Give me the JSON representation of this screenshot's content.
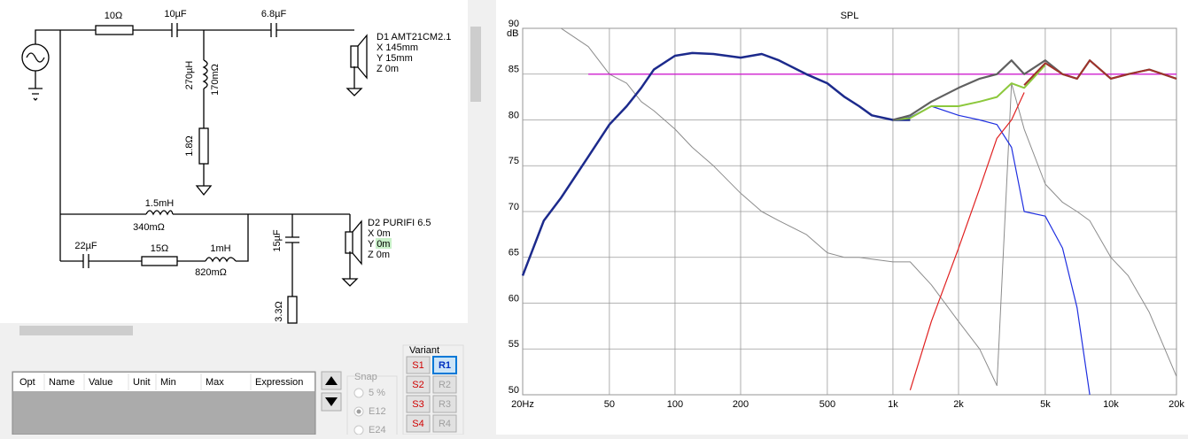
{
  "schematic": {
    "components": [
      "10Ω",
      "10µF",
      "6.8µF",
      "270µH",
      "170mΩ",
      "1.8Ω",
      "1.5mH",
      "340mΩ",
      "22µF",
      "15Ω",
      "1mH",
      "820mΩ",
      "15µF",
      "3.3Ω"
    ],
    "drivers": [
      {
        "name": "D1 AMT21CM2.1",
        "x": "X 145mm",
        "y": "Y 15mm",
        "z": "Z 0m"
      },
      {
        "name": "D2 PURIFI 6.5",
        "x": "X 0m",
        "y": "Y 0m",
        "z": "Z 0m"
      }
    ]
  },
  "parameter_table": {
    "columns": [
      "Opt",
      "Name",
      "Value",
      "Unit",
      "Min",
      "Max",
      "Expression"
    ]
  },
  "snap": {
    "title": "Snap",
    "options": [
      "5 %",
      "E12",
      "E24"
    ]
  },
  "variant": {
    "title": "Variant",
    "buttons": [
      "S1",
      "R1",
      "S2",
      "R2",
      "S3",
      "R3",
      "S4",
      "R4"
    ]
  },
  "chart_data": {
    "type": "line",
    "title": "SPL",
    "y_label": "dB",
    "log_x": true,
    "grid": true,
    "x": [
      20,
      25,
      30,
      40,
      50,
      60,
      70,
      80,
      100,
      120,
      150,
      200,
      250,
      300,
      400,
      500,
      600,
      700,
      800,
      1000,
      1200,
      1500,
      2000,
      2500,
      3000,
      3500,
      4000,
      5000,
      6000,
      7000,
      8000,
      10000,
      12000,
      15000,
      20000
    ],
    "xlim": [
      20,
      20000
    ],
    "xticks": [
      {
        "value": 20,
        "label": "20Hz"
      },
      50,
      100,
      200,
      500,
      {
        "value": 1000,
        "label": "1k"
      },
      {
        "value": 2000,
        "label": "2k"
      },
      {
        "value": 5000,
        "label": "5k"
      },
      {
        "value": 10000,
        "label": "10k"
      },
      {
        "value": 20000,
        "label": "20k"
      }
    ],
    "ylim": [
      50,
      90
    ],
    "yticks": [
      50,
      55,
      60,
      65,
      70,
      75,
      80,
      85,
      90
    ],
    "series": [
      {
        "color": "#8c8c8c",
        "line_width": 1,
        "values": [
          null,
          null,
          90,
          88,
          85,
          84,
          82,
          81,
          79,
          77,
          75,
          72,
          70,
          69,
          67.5,
          65.5,
          65,
          65,
          64.8,
          64.5,
          64.5,
          62,
          58,
          55,
          51,
          84,
          79,
          73,
          71,
          70,
          69,
          65,
          63,
          59,
          52
        ]
      },
      {
        "color": "#d020d0",
        "line_width": 1.3,
        "values": [
          null,
          null,
          null,
          85,
          85,
          85,
          85,
          85,
          85,
          85,
          85,
          85,
          85,
          85,
          85,
          85,
          85,
          85,
          85,
          85,
          85,
          85,
          85,
          85,
          85,
          85,
          85,
          85,
          85,
          85,
          85,
          85,
          85,
          85,
          85
        ]
      },
      {
        "color": "#1c2a8c",
        "line_width": 2.5,
        "values": [
          63,
          69,
          71.5,
          76,
          79.5,
          81.5,
          83.5,
          85.5,
          87,
          87.3,
          87.2,
          86.8,
          87.2,
          86.5,
          85,
          84,
          82.5,
          81.5,
          80.5,
          80,
          80,
          null,
          null,
          null,
          null,
          null,
          null,
          null,
          null,
          null,
          null,
          null,
          null,
          null,
          null
        ]
      },
      {
        "color": "#1f2fe0",
        "line_width": 1.2,
        "values": [
          null,
          null,
          null,
          null,
          null,
          null,
          null,
          null,
          null,
          null,
          null,
          null,
          null,
          null,
          null,
          null,
          null,
          null,
          null,
          80,
          80.3,
          81.5,
          80.5,
          80,
          79.5,
          77,
          70,
          69.5,
          66,
          59.5,
          50,
          null,
          null,
          null,
          null
        ]
      },
      {
        "color": "#e02020",
        "line_width": 1.2,
        "values": [
          null,
          null,
          null,
          null,
          null,
          null,
          null,
          null,
          null,
          null,
          null,
          null,
          null,
          null,
          null,
          null,
          null,
          null,
          null,
          null,
          50.5,
          58,
          66,
          72.5,
          78,
          80,
          83,
          null,
          null,
          null,
          null,
          null,
          null,
          null,
          null
        ]
      },
      {
        "color": "#8cc83c",
        "line_width": 2,
        "values": [
          null,
          null,
          null,
          null,
          null,
          null,
          null,
          null,
          null,
          null,
          null,
          null,
          null,
          null,
          null,
          null,
          null,
          null,
          null,
          80,
          80.2,
          81.5,
          81.5,
          82,
          82.5,
          84,
          83.5,
          86,
          null,
          null,
          null,
          null,
          null,
          null,
          null
        ]
      },
      {
        "color": "#606060",
        "line_width": 2.2,
        "values": [
          null,
          null,
          null,
          null,
          null,
          null,
          null,
          null,
          null,
          null,
          null,
          null,
          null,
          null,
          null,
          null,
          null,
          null,
          null,
          80,
          80.5,
          82,
          83.5,
          84.5,
          85,
          86.5,
          85,
          86.5,
          85,
          84.5,
          86.5,
          84.5,
          85,
          85.5,
          84.5
        ]
      },
      {
        "color": "#a0322a",
        "line_width": 2,
        "values": [
          null,
          null,
          null,
          null,
          null,
          null,
          null,
          null,
          null,
          null,
          null,
          null,
          null,
          null,
          null,
          null,
          null,
          null,
          null,
          null,
          null,
          null,
          null,
          null,
          null,
          null,
          83.8,
          86.2,
          85,
          84.5,
          86.5,
          84.5,
          85,
          85.5,
          84.5
        ]
      }
    ]
  }
}
